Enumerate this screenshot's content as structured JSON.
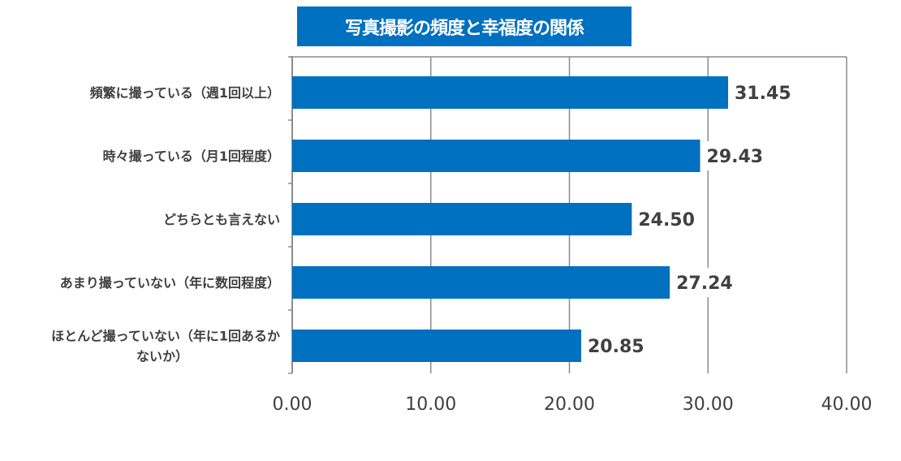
{
  "chart_data": {
    "type": "bar",
    "orientation": "horizontal",
    "title": "写真撮影の頻度と幸福度の関係",
    "categories": [
      "頻繁に撮っている（週1回以上）",
      "時々撮っている（月1回程度）",
      "どちらとも言えない",
      "あまり撮っていない（年に数回程度）",
      "ほとんど撮っていない（年に1回あるかないか）"
    ],
    "category_lines": [
      [
        "頻繁に撮っている（週1回以上）"
      ],
      [
        "時々撮っている（月1回程度）"
      ],
      [
        "どちらとも言えない"
      ],
      [
        "あまり撮っていない（年に数回程度）"
      ],
      [
        "ほとんど撮っていない（年に1回あるか",
        "ないか）"
      ]
    ],
    "values": [
      31.45,
      29.43,
      24.5,
      27.24,
      20.85
    ],
    "data_labels": [
      "31.45",
      "29.43",
      "24.50",
      "27.24",
      "20.85"
    ],
    "xlim": [
      0,
      40
    ],
    "xticks": [
      "0.00",
      "10.00",
      "20.00",
      "30.00",
      "40.00"
    ],
    "xlabel": "",
    "ylabel": "",
    "grid": "vertical",
    "legend": "none",
    "colors": {
      "bar": "#0070c0",
      "title_bg": "#0070c0",
      "grid": "#8c8c8c",
      "text": "#404040"
    }
  }
}
